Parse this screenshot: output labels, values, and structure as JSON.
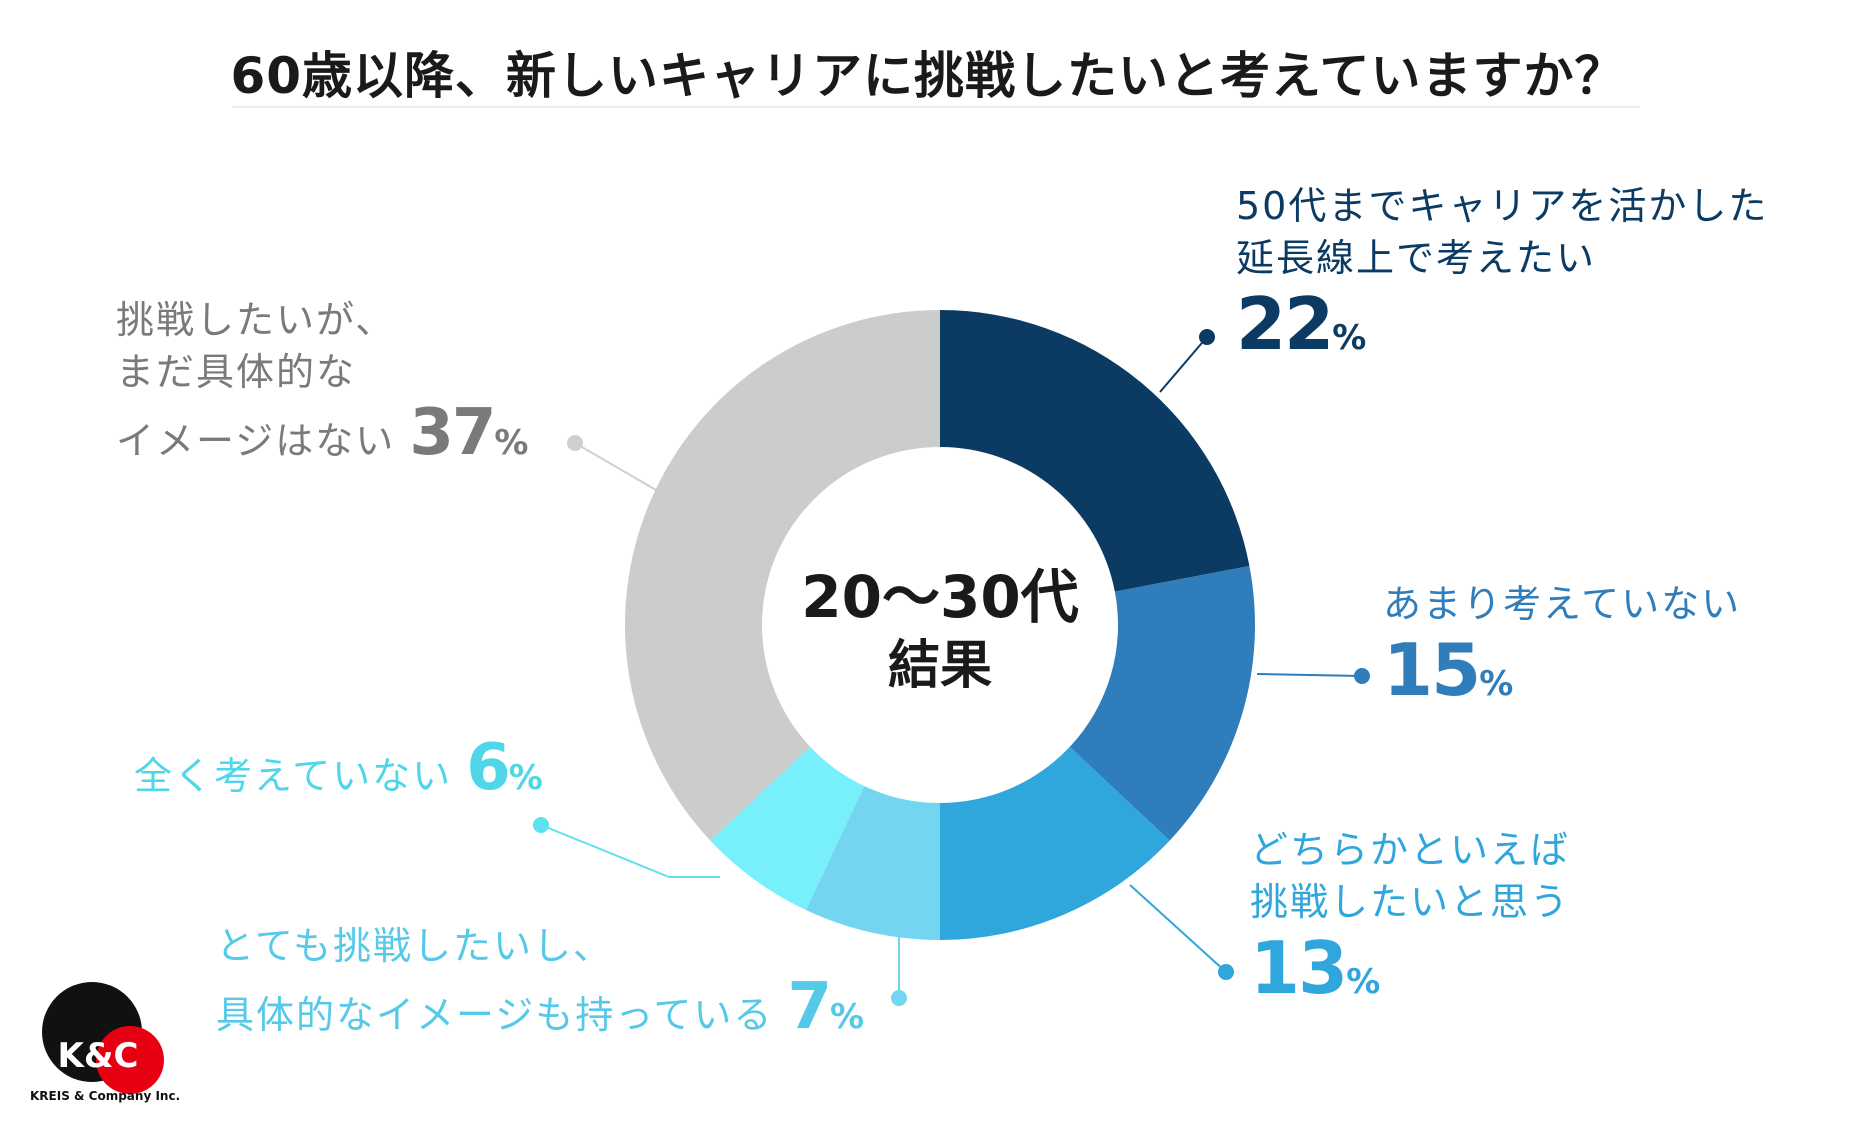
{
  "title": "60歳以降、新しいキャリアに挑戦したいと考えていますか？",
  "center_label": {
    "line1": "20〜30代",
    "line2": "結果"
  },
  "chart_data": {
    "type": "pie",
    "title": "60歳以降、新しいキャリアに挑戦したいと考えていますか？",
    "slices": [
      {
        "label": "50代までキャリアを活かした延長線上で考えたい",
        "value": 22,
        "color": "#0b3a63"
      },
      {
        "label": "あまり考えていない",
        "value": 15,
        "color": "#307dbb"
      },
      {
        "label": "どちらかといえば挑戦したいと思う",
        "value": 13,
        "color": "#2fa6dc"
      },
      {
        "label": "とても挑戦したいし、具体的なイメージも持っている",
        "value": 7,
        "color": "#73d5ef"
      },
      {
        "label": "全く考えていない",
        "value": 6,
        "color": "#78f0fb"
      },
      {
        "label": "挑戦したいが、まだ具体的なイメージはない",
        "value": 37,
        "color": "#cbcccc"
      }
    ],
    "unit": "%"
  },
  "labels": {
    "s1": {
      "line1": "50代までキャリアを活かした",
      "line2": "延長線上で考えたい",
      "value": "22",
      "unit": "%"
    },
    "s2": {
      "line1": "あまり考えていない",
      "value": "15",
      "unit": "%"
    },
    "s3": {
      "line1": "どちらかといえば",
      "line2": "挑戦したいと思う",
      "value": "13",
      "unit": "%"
    },
    "s4": {
      "line1": "とても挑戦したいし、",
      "line2": "具体的なイメージも持っている",
      "value": "7",
      "unit": "%"
    },
    "s5": {
      "line1": "全く考えていない",
      "value": "6",
      "unit": "%"
    },
    "s6": {
      "line1": "挑戦したいが、",
      "line2": "まだ具体的な",
      "line3": "イメージはない",
      "value": "37",
      "unit": "%"
    }
  },
  "logo": {
    "mark": "K&C",
    "caption": "KREIS & Company Inc."
  },
  "colors": {
    "c1": "#0b3a63",
    "c2": "#307dbb",
    "c3": "#2fa6dc",
    "c4": "#57c9e8",
    "c5": "#4fd6e8",
    "c6": "#7a7a7a"
  }
}
